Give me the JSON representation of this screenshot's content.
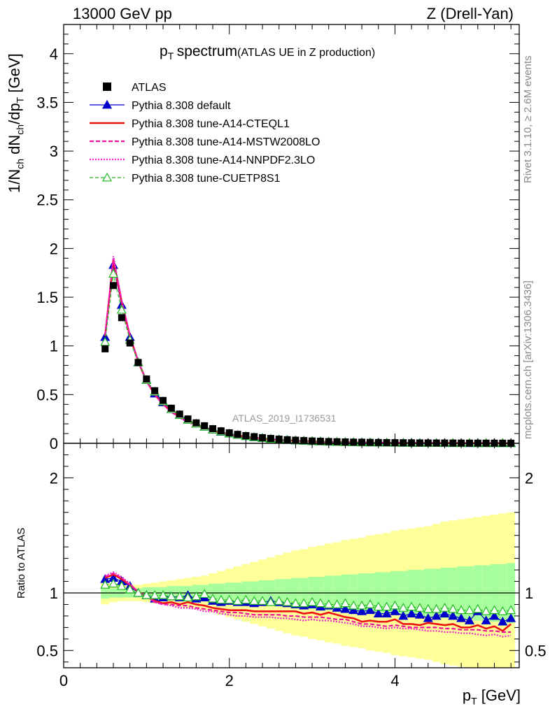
{
  "header": {
    "left": "13000 GeV pp",
    "right": "Z (Drell-Yan)"
  },
  "title": {
    "main": "spectrum",
    "paren": "(ATLAS UE in Z production)"
  },
  "watermark": "ATLAS_2019_I1736531",
  "side_labels": {
    "rivet": "Rivet 3.1.10, ≥ 2.6M events",
    "mcplots": "mcplots.cern.ch [arXiv:1306.3436]"
  },
  "ratio_ylabel": "Ratio to ATLAS",
  "colors": {
    "atlas": "#000000",
    "default": "#0000cc",
    "cteql1": "#ee1111",
    "mstw": "#ee1199",
    "nnpdf": "#ee22cc",
    "cuetp8s1": "#22bb22",
    "band_inner": "#a6ff9c",
    "band_outer": "#ffff99"
  },
  "chart_data": {
    "type": "scatter",
    "title": "pT spectrum (ATLAS UE in Z production)",
    "xlabel": "pT [GeV]",
    "ylabel": "1/Nch dNch/dpT [GeV]",
    "xlim": [
      0,
      5.5
    ],
    "ylim": [
      0,
      4.3
    ],
    "ratio_ylim": [
      0.35,
      2.3
    ],
    "x_ticks": [
      0,
      2,
      4
    ],
    "y_ticks": [
      "0",
      "0.5",
      "1",
      "1.5",
      "2",
      "2.5",
      "3",
      "3.5",
      "4"
    ],
    "ratio_ticks": [
      "0.5",
      "1",
      "2"
    ],
    "grid": false,
    "legend_position": "top-left",
    "x": [
      0.5,
      0.6,
      0.7,
      0.8,
      0.9,
      1.0,
      1.1,
      1.2,
      1.3,
      1.4,
      1.5,
      1.6,
      1.7,
      1.8,
      1.9,
      2.0,
      2.1,
      2.2,
      2.3,
      2.4,
      2.5,
      2.6,
      2.7,
      2.8,
      2.9,
      3.0,
      3.1,
      3.2,
      3.3,
      3.4,
      3.5,
      3.6,
      3.7,
      3.8,
      3.9,
      4.0,
      4.1,
      4.2,
      4.3,
      4.4,
      4.5,
      4.6,
      4.7,
      4.8,
      4.9,
      5.0,
      5.1,
      5.2,
      5.3,
      5.4
    ],
    "series": [
      {
        "name": "ATLAS",
        "key": "atlas",
        "style": "marker-square",
        "values": [
          0.97,
          1.62,
          1.29,
          1.03,
          0.83,
          0.66,
          0.54,
          0.44,
          0.36,
          0.3,
          0.25,
          0.21,
          0.18,
          0.15,
          0.128,
          0.108,
          0.092,
          0.079,
          0.068,
          0.058,
          0.05,
          0.043,
          0.037,
          0.032,
          0.028,
          0.024,
          0.021,
          0.018,
          0.016,
          0.014,
          0.012,
          0.011,
          0.0095,
          0.0083,
          0.0073,
          0.0064,
          0.0056,
          0.0049,
          0.0043,
          0.0038,
          0.0033,
          0.0029,
          0.0026,
          0.0023,
          0.002,
          0.0018,
          0.0016,
          0.0014,
          0.0012,
          0.0011
        ],
        "ratio": [
          1,
          1,
          1,
          1,
          1,
          1,
          1,
          1,
          1,
          1,
          1,
          1,
          1,
          1,
          1,
          1,
          1,
          1,
          1,
          1,
          1,
          1,
          1,
          1,
          1,
          1,
          1,
          1,
          1,
          1,
          1,
          1,
          1,
          1,
          1,
          1,
          1,
          1,
          1,
          1,
          1,
          1,
          1,
          1,
          1,
          1,
          1,
          1,
          1,
          1
        ]
      },
      {
        "name": "Pythia 8.308 default",
        "key": "default",
        "style": "line-triangle",
        "values": [
          1.09,
          1.83,
          1.42,
          1.09,
          0.83,
          0.65,
          0.51,
          0.42,
          0.35,
          0.29,
          0.24,
          0.2,
          0.17,
          0.14,
          0.118,
          0.1,
          0.085,
          0.073,
          0.062,
          0.053,
          0.046,
          0.04,
          0.034,
          0.029,
          0.025,
          0.022,
          0.019,
          0.016,
          0.014,
          0.012,
          0.01,
          0.0093,
          0.008,
          0.0068,
          0.006,
          0.0054,
          0.0045,
          0.004,
          0.0035,
          0.003,
          0.0026,
          0.0024,
          0.0021,
          0.0018,
          0.0015,
          0.0015,
          0.0012,
          0.0011,
          0.0009,
          0.0009
        ],
        "ratio": [
          1.12,
          1.13,
          1.1,
          1.06,
          1.0,
          0.98,
          0.95,
          0.96,
          0.97,
          0.96,
          0.98,
          0.95,
          0.96,
          0.93,
          0.92,
          0.93,
          0.92,
          0.92,
          0.91,
          0.92,
          0.93,
          0.92,
          0.91,
          0.9,
          0.89,
          0.9,
          0.88,
          0.89,
          0.87,
          0.86,
          0.85,
          0.84,
          0.85,
          0.82,
          0.82,
          0.84,
          0.8,
          0.82,
          0.81,
          0.78,
          0.8,
          0.82,
          0.8,
          0.78,
          0.76,
          0.84,
          0.76,
          0.8,
          0.75,
          0.78
        ]
      },
      {
        "name": "Pythia 8.308 tune-A14-CTEQL1",
        "key": "cteql1",
        "style": "line-solid",
        "values": [
          1.1,
          1.88,
          1.45,
          1.1,
          0.84,
          0.64,
          0.5,
          0.4,
          0.33,
          0.27,
          0.23,
          0.19,
          0.16,
          0.13,
          0.11,
          0.092,
          0.078,
          0.067,
          0.057,
          0.049,
          0.042,
          0.036,
          0.031,
          0.027,
          0.023,
          0.02,
          0.017,
          0.015,
          0.013,
          0.011,
          0.0094,
          0.0083,
          0.0072,
          0.0062,
          0.0055,
          0.0049,
          0.0041,
          0.0036,
          0.0031,
          0.0028,
          0.0024,
          0.0021,
          0.0019,
          0.0016,
          0.0014,
          0.0013,
          0.0011,
          0.001,
          0.0008,
          0.0008
        ],
        "ratio": [
          1.13,
          1.16,
          1.12,
          1.07,
          1.01,
          0.97,
          0.93,
          0.91,
          0.92,
          0.9,
          0.92,
          0.9,
          0.89,
          0.87,
          0.86,
          0.85,
          0.85,
          0.85,
          0.84,
          0.84,
          0.84,
          0.84,
          0.84,
          0.84,
          0.82,
          0.83,
          0.81,
          0.83,
          0.81,
          0.79,
          0.78,
          0.75,
          0.76,
          0.75,
          0.75,
          0.77,
          0.73,
          0.73,
          0.72,
          0.74,
          0.73,
          0.72,
          0.73,
          0.7,
          0.7,
          0.72,
          0.69,
          0.71,
          0.67,
          0.73
        ]
      },
      {
        "name": "Pythia 8.308 tune-A14-MSTW2008LO",
        "key": "mstw",
        "style": "line-dashed",
        "values": [
          1.11,
          1.9,
          1.46,
          1.1,
          0.84,
          0.64,
          0.5,
          0.4,
          0.32,
          0.27,
          0.22,
          0.18,
          0.155,
          0.13,
          0.107,
          0.09,
          0.076,
          0.065,
          0.055,
          0.047,
          0.041,
          0.035,
          0.03,
          0.026,
          0.022,
          0.019,
          0.017,
          0.014,
          0.012,
          0.011,
          0.009,
          0.008,
          0.0069,
          0.006,
          0.0052,
          0.0046,
          0.004,
          0.0035,
          0.003,
          0.0027,
          0.0023,
          0.002,
          0.0018,
          0.0016,
          0.0014,
          0.0012,
          0.0011,
          0.0009,
          0.0008,
          0.0007
        ],
        "ratio": [
          1.14,
          1.17,
          1.13,
          1.07,
          1.01,
          0.97,
          0.92,
          0.9,
          0.9,
          0.89,
          0.89,
          0.87,
          0.86,
          0.85,
          0.84,
          0.83,
          0.83,
          0.82,
          0.81,
          0.81,
          0.81,
          0.81,
          0.8,
          0.8,
          0.79,
          0.79,
          0.79,
          0.78,
          0.77,
          0.77,
          0.75,
          0.73,
          0.73,
          0.72,
          0.71,
          0.72,
          0.71,
          0.7,
          0.7,
          0.7,
          0.7,
          0.69,
          0.69,
          0.68,
          0.68,
          0.68,
          0.67,
          0.67,
          0.66,
          0.66
        ]
      },
      {
        "name": "Pythia 8.308 tune-A14-NNPDF2.3LO",
        "key": "nnpdf",
        "style": "line-dotted",
        "values": [
          1.11,
          1.92,
          1.47,
          1.11,
          0.84,
          0.64,
          0.5,
          0.4,
          0.32,
          0.26,
          0.22,
          0.18,
          0.15,
          0.127,
          0.105,
          0.088,
          0.074,
          0.063,
          0.054,
          0.046,
          0.04,
          0.034,
          0.029,
          0.025,
          0.021,
          0.019,
          0.016,
          0.014,
          0.012,
          0.01,
          0.0087,
          0.0077,
          0.0066,
          0.0057,
          0.005,
          0.0044,
          0.0039,
          0.0034,
          0.0029,
          0.0025,
          0.0022,
          0.0019,
          0.0017,
          0.0015,
          0.0013,
          0.0011,
          0.001,
          0.0009,
          0.0008,
          0.0007
        ],
        "ratio": [
          1.15,
          1.18,
          1.14,
          1.08,
          1.01,
          0.97,
          0.92,
          0.9,
          0.89,
          0.87,
          0.87,
          0.86,
          0.84,
          0.84,
          0.82,
          0.81,
          0.8,
          0.8,
          0.79,
          0.79,
          0.79,
          0.78,
          0.78,
          0.77,
          0.76,
          0.77,
          0.76,
          0.76,
          0.75,
          0.74,
          0.73,
          0.71,
          0.71,
          0.7,
          0.69,
          0.7,
          0.69,
          0.69,
          0.68,
          0.67,
          0.67,
          0.66,
          0.66,
          0.65,
          0.65,
          0.64,
          0.63,
          0.64,
          0.62,
          0.63
        ]
      },
      {
        "name": "Pythia 8.308 tune-CUETP8S1",
        "key": "cuetp8s1",
        "style": "dashed-triangle-open",
        "values": [
          1.04,
          1.74,
          1.37,
          1.06,
          0.83,
          0.65,
          0.53,
          0.43,
          0.35,
          0.29,
          0.24,
          0.2,
          0.17,
          0.14,
          0.12,
          0.101,
          0.086,
          0.074,
          0.063,
          0.054,
          0.046,
          0.04,
          0.034,
          0.029,
          0.025,
          0.022,
          0.019,
          0.016,
          0.014,
          0.012,
          0.011,
          0.0095,
          0.0081,
          0.007,
          0.0062,
          0.0055,
          0.0048,
          0.0042,
          0.0037,
          0.0032,
          0.0028,
          0.0025,
          0.0022,
          0.002,
          0.0017,
          0.0015,
          0.0013,
          0.0012,
          0.001,
          0.0009
        ],
        "ratio": [
          1.07,
          1.08,
          1.06,
          1.03,
          1.0,
          0.98,
          0.98,
          0.98,
          0.97,
          0.97,
          0.96,
          0.97,
          0.99,
          0.95,
          0.94,
          0.94,
          0.93,
          0.94,
          0.93,
          0.93,
          0.92,
          0.93,
          0.92,
          0.91,
          0.91,
          0.92,
          0.91,
          0.9,
          0.9,
          0.91,
          0.89,
          0.89,
          0.9,
          0.88,
          0.88,
          0.89,
          0.87,
          0.88,
          0.87,
          0.86,
          0.86,
          0.87,
          0.86,
          0.85,
          0.85,
          0.86,
          0.84,
          0.85,
          0.84,
          0.85
        ]
      }
    ],
    "band_inner_halfwidth": [
      0.05,
      0.04,
      0.04,
      0.04,
      0.04,
      0.05,
      0.05,
      0.05,
      0.06,
      0.06,
      0.06,
      0.07,
      0.07,
      0.08,
      0.08,
      0.09,
      0.09,
      0.1,
      0.1,
      0.11,
      0.11,
      0.12,
      0.12,
      0.13,
      0.13,
      0.14,
      0.14,
      0.15,
      0.15,
      0.16,
      0.16,
      0.17,
      0.17,
      0.18,
      0.18,
      0.19,
      0.19,
      0.2,
      0.2,
      0.21,
      0.21,
      0.22,
      0.22,
      0.23,
      0.23,
      0.24,
      0.24,
      0.25,
      0.25,
      0.26
    ],
    "band_outer_halfwidth": [
      0.1,
      0.08,
      0.07,
      0.07,
      0.07,
      0.08,
      0.09,
      0.1,
      0.11,
      0.12,
      0.13,
      0.14,
      0.15,
      0.17,
      0.19,
      0.21,
      0.23,
      0.25,
      0.27,
      0.29,
      0.31,
      0.33,
      0.35,
      0.37,
      0.38,
      0.4,
      0.41,
      0.43,
      0.44,
      0.46,
      0.47,
      0.48,
      0.5,
      0.51,
      0.52,
      0.54,
      0.55,
      0.56,
      0.57,
      0.58,
      0.6,
      0.62,
      0.63,
      0.64,
      0.65,
      0.66,
      0.67,
      0.68,
      0.69,
      0.7
    ]
  }
}
